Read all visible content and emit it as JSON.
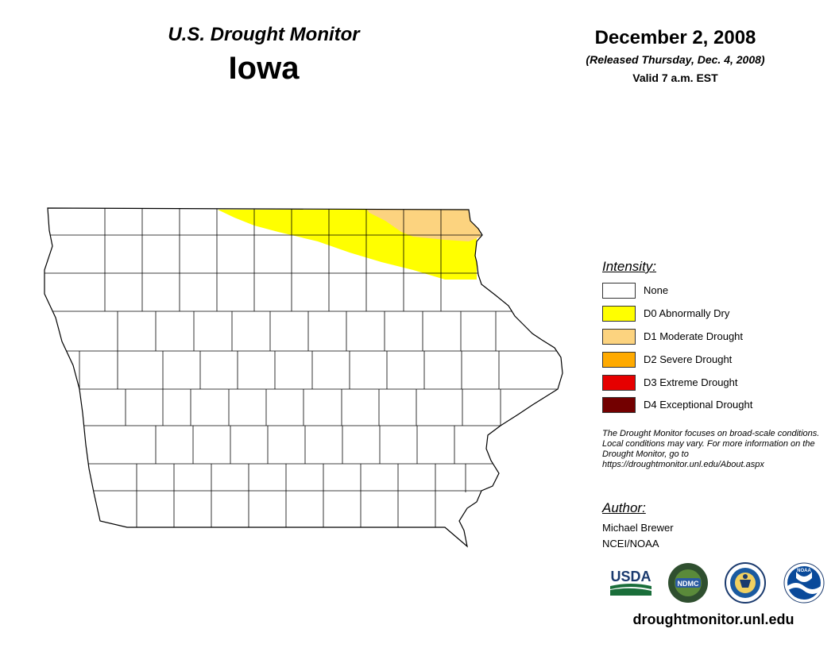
{
  "header": {
    "program": "U.S. Drought Monitor",
    "state": "Iowa",
    "date": "December 2, 2008",
    "released": "(Released Thursday, Dec. 4, 2008)",
    "valid": "Valid 7 a.m. EST"
  },
  "legend": {
    "title": "Intensity:",
    "items": [
      {
        "label": "None",
        "color": "#ffffff"
      },
      {
        "label": "D0 Abnormally Dry",
        "color": "#ffff00"
      },
      {
        "label": "D1 Moderate Drought",
        "color": "#fcd37f"
      },
      {
        "label": "D2 Severe Drought",
        "color": "#ffaa00"
      },
      {
        "label": "D3 Extreme Drought",
        "color": "#e60000"
      },
      {
        "label": "D4 Exceptional Drought",
        "color": "#730000"
      }
    ]
  },
  "note": "The Drought Monitor focuses on broad-scale conditions. Local conditions may vary. For more information on the Drought Monitor, go to https://droughtmonitor.unl.edu/About.aspx",
  "author": {
    "title": "Author:",
    "name": "Michael Brewer",
    "org": "NCEI/NOAA"
  },
  "logos": [
    {
      "icon": "usda-logo",
      "text": "USDA"
    },
    {
      "icon": "ndmc-logo",
      "text": "NDMC"
    },
    {
      "icon": "doc-seal-logo"
    },
    {
      "icon": "noaa-logo",
      "text": "NOAA"
    }
  ],
  "website": "droughtmonitor.unl.edu"
}
